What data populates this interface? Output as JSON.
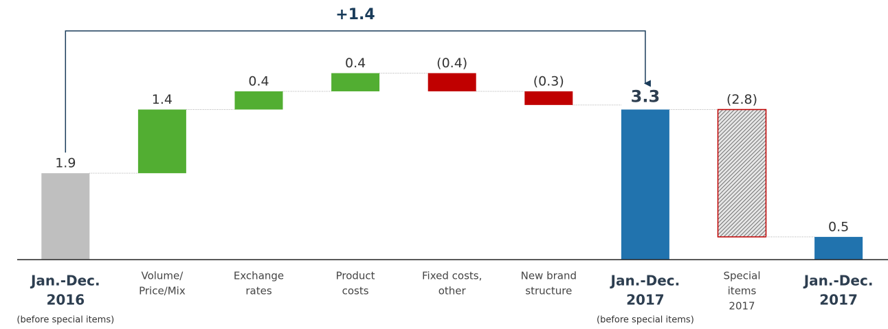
{
  "chart_data": {
    "type": "waterfall",
    "annotation": "+1.4",
    "categories": [
      [
        "Jan.-Dec.",
        "2016"
      ],
      [
        "Volume/",
        "Price/Mix"
      ],
      [
        "Exchange",
        "rates"
      ],
      [
        "Product",
        "costs"
      ],
      [
        "Fixed costs,",
        "other"
      ],
      [
        "New brand",
        "structure"
      ],
      [
        "Jan.-Dec.",
        "2017"
      ],
      [
        "Special",
        "items",
        "2017"
      ],
      [
        "Jan.-Dec.",
        "2017"
      ]
    ],
    "category_notes": [
      "(before special items)",
      null,
      null,
      null,
      null,
      null,
      "(before special items)",
      null,
      null
    ],
    "measure": [
      "total",
      "relative",
      "relative",
      "relative",
      "relative",
      "relative",
      "total",
      "relative",
      "total"
    ],
    "values": [
      1.9,
      1.4,
      0.4,
      0.4,
      -0.4,
      -0.3,
      3.3,
      -2.8,
      0.5
    ],
    "value_labels": [
      "1.9",
      "1.4",
      "0.4",
      "0.4",
      "(0.4)",
      "(0.3)",
      "3.3",
      "(2.8)",
      "0.5"
    ],
    "colors": [
      "#bfbfbf",
      "#52ae32",
      "#52ae32",
      "#52ae32",
      "#c00000",
      "#c00000",
      "#2173ae",
      "hatched",
      "#2173ae"
    ],
    "ylim": [
      0,
      4.5
    ]
  }
}
